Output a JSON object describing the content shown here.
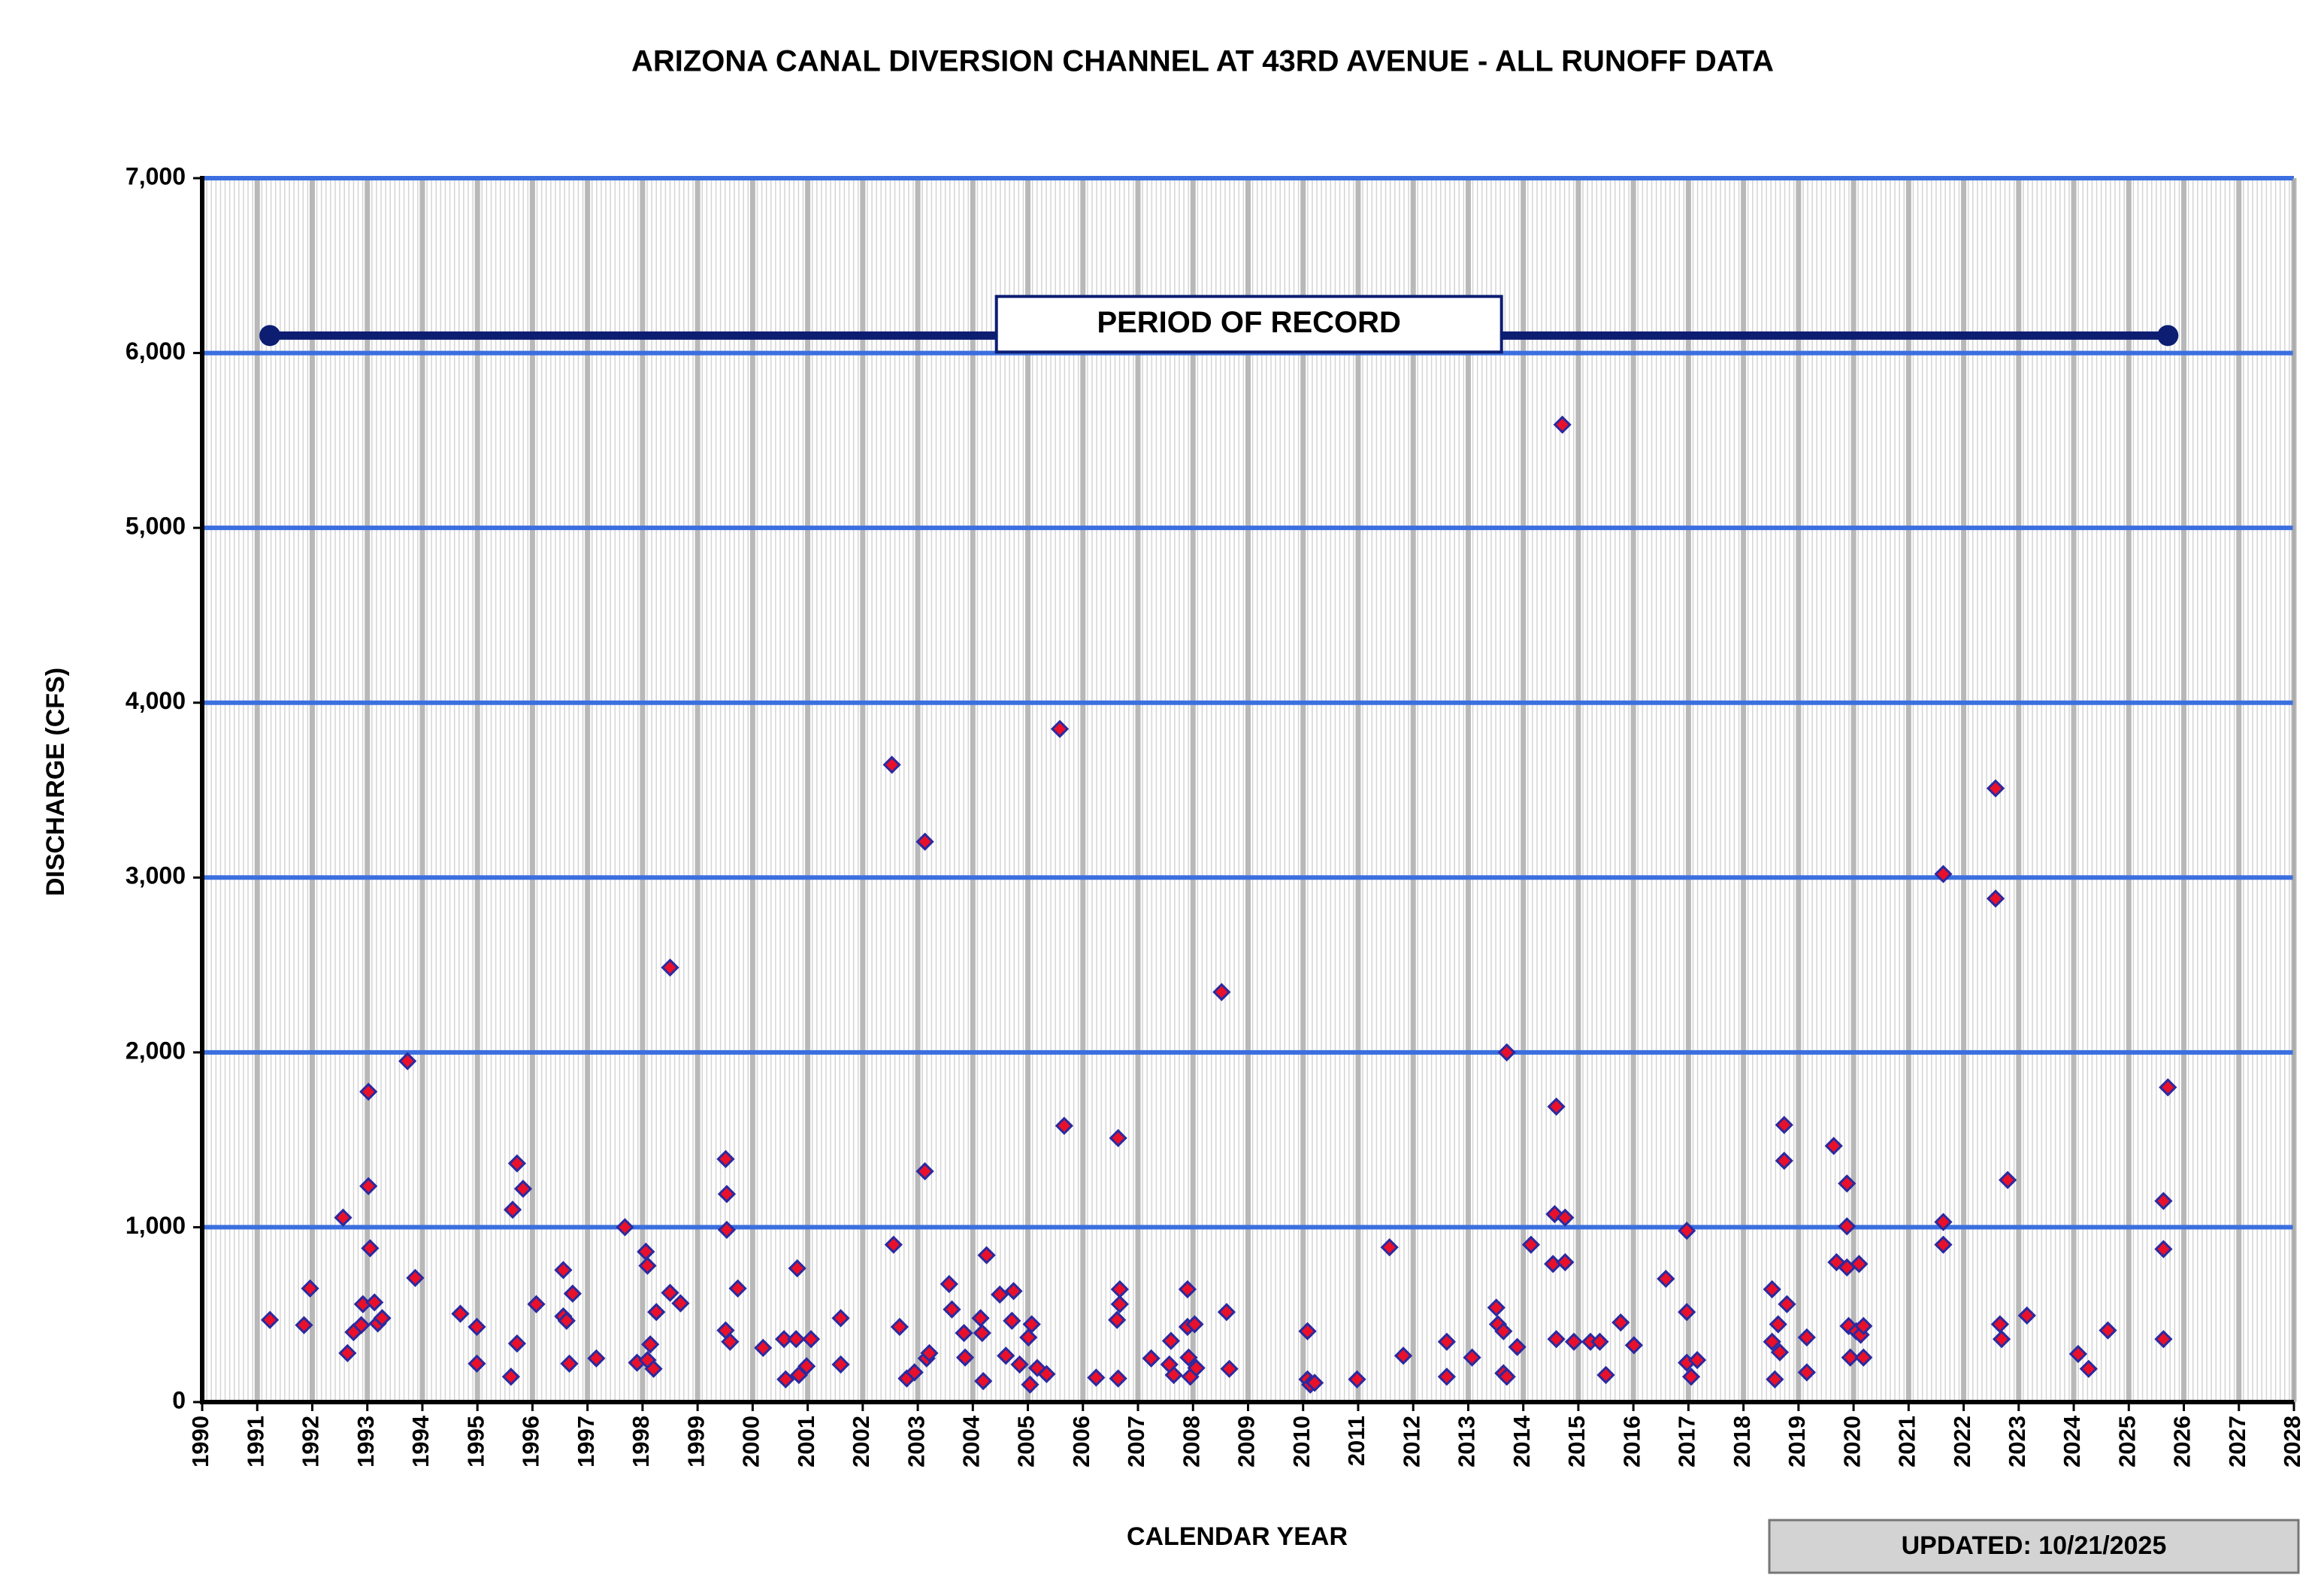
{
  "chart_data": {
    "type": "scatter",
    "title": "ARIZONA CANAL DIVERSION CHANNEL AT 43RD AVENUE - ALL RUNOFF DATA",
    "x_label": "CALENDAR YEAR",
    "y_label": "DISCHARGE (CFS)",
    "updated": "UPDATED: 10/21/2025",
    "color": "#e8102a",
    "edge_color": "#2a2aa0",
    "grid": true,
    "xlim": [
      1990,
      2028
    ],
    "ylim": [
      0,
      7000
    ],
    "xticks": [
      1990,
      1991,
      1992,
      1993,
      1994,
      1995,
      1996,
      1997,
      1998,
      1999,
      2000,
      2001,
      2002,
      2003,
      2004,
      2005,
      2006,
      2007,
      2008,
      2009,
      2010,
      2011,
      2012,
      2013,
      2014,
      2015,
      2016,
      2017,
      2018,
      2019,
      2020,
      2021,
      2022,
      2023,
      2024,
      2025,
      2026,
      2027,
      2028
    ],
    "yticks": [
      0,
      {
        "value": 1000,
        "label": "1,000"
      },
      {
        "value": 2000,
        "label": "2,000"
      },
      {
        "value": 3000,
        "label": "3,000"
      },
      {
        "value": 4000,
        "label": "4,000"
      },
      {
        "value": 5000,
        "label": "5,000"
      },
      {
        "value": 6000,
        "label": "6,000"
      },
      {
        "value": 7000,
        "label": "7,000"
      }
    ],
    "period_of_record": {
      "text": "PERIOD OF RECORD",
      "x": [
        1991.23,
        2025.71
      ],
      "y": 6100
    },
    "x": [
      1991.23,
      1991.85,
      1991.96,
      1992.56,
      1992.64,
      1992.75,
      1992.89,
      1992.92,
      1993.02,
      1993.02,
      1993.05,
      1993.13,
      1993.19,
      1993.27,
      1993.73,
      1993.87,
      1994.69,
      1994.99,
      1994.99,
      1995.61,
      1995.64,
      1995.72,
      1995.72,
      1995.83,
      1996.07,
      1996.56,
      1996.56,
      1996.62,
      1996.67,
      1996.73,
      1997.16,
      1997.68,
      1997.9,
      1998.06,
      1998.09,
      1998.09,
      1998.14,
      1998.2,
      1998.25,
      1998.5,
      1998.5,
      1998.69,
      1999.51,
      1999.51,
      1999.53,
      1999.53,
      1999.59,
      1999.73,
      2000.19,
      2000.57,
      2000.6,
      2000.79,
      2000.81,
      2000.84,
      2000.98,
      2001.06,
      2001.6,
      2001.6,
      2002.53,
      2002.56,
      2002.67,
      2002.8,
      2002.94,
      2003.13,
      2003.13,
      2003.16,
      2003.21,
      2003.57,
      2003.62,
      2003.84,
      2003.86,
      2004.14,
      2004.17,
      2004.19,
      2004.25,
      2004.49,
      2004.6,
      2004.74,
      2004.71,
      2004.85,
      2005.01,
      2005.07,
      2005.04,
      2005.17,
      2005.34,
      2005.58,
      2005.66,
      2006.24,
      2006.62,
      2006.64,
      2006.67,
      2006.67,
      2006.64,
      2007.24,
      2007.57,
      2007.6,
      2007.65,
      2007.9,
      2007.9,
      2007.92,
      2007.95,
      2008.03,
      2008.06,
      2008.52,
      2008.61,
      2008.66,
      2010.08,
      2010.08,
      2010.13,
      2010.21,
      2010.98,
      2011.57,
      2011.82,
      2012.61,
      2012.61,
      2013.07,
      2013.51,
      2013.54,
      2013.64,
      2013.64,
      2013.7,
      2013.7,
      2013.89,
      2014.14,
      2014.6,
      2014.57,
      2014.54,
      2014.6,
      2014.71,
      2014.76,
      2014.76,
      2014.92,
      2015.22,
      2015.39,
      2015.5,
      2015.77,
      2016.01,
      2016.59,
      2016.97,
      2016.97,
      2016.97,
      2017.05,
      2017.16,
      2018.52,
      2018.52,
      2018.57,
      2018.63,
      2018.66,
      2018.74,
      2018.74,
      2018.79,
      2019.15,
      2019.15,
      2019.64,
      2019.69,
      2019.88,
      2019.88,
      2019.88,
      2019.91,
      2019.94,
      2020.05,
      2020.1,
      2020.13,
      2020.18,
      2020.18,
      2021.63,
      2021.63,
      2021.63,
      2022.58,
      2022.58,
      2022.66,
      2022.69,
      2022.8,
      2023.15,
      2024.08,
      2024.27,
      2024.62,
      2025.63,
      2025.63,
      2025.63,
      2025.71
    ],
    "values": [
      470,
      440,
      650,
      1055,
      280,
      400,
      440,
      560,
      1775,
      1235,
      880,
      570,
      450,
      480,
      1950,
      710,
      505,
      430,
      220,
      145,
      1100,
      1365,
      335,
      1220,
      560,
      755,
      490,
      465,
      220,
      620,
      250,
      1000,
      225,
      860,
      780,
      240,
      330,
      190,
      515,
      2485,
      625,
      565,
      1390,
      410,
      1190,
      985,
      345,
      650,
      310,
      360,
      130,
      360,
      765,
      155,
      205,
      360,
      480,
      215,
      3645,
      900,
      430,
      135,
      170,
      3205,
      1320,
      250,
      280,
      675,
      530,
      395,
      255,
      480,
      395,
      120,
      840,
      615,
      265,
      635,
      465,
      215,
      370,
      445,
      100,
      195,
      160,
      3850,
      1580,
      140,
      470,
      1510,
      645,
      560,
      135,
      250,
      215,
      350,
      155,
      645,
      430,
      255,
      145,
      445,
      195,
      2345,
      515,
      190,
      405,
      130,
      100,
      110,
      130,
      885,
      265,
      345,
      145,
      255,
      540,
      445,
      405,
      165,
      145,
      2000,
      315,
      900,
      1690,
      1075,
      790,
      360,
      5590,
      1055,
      800,
      345,
      345,
      345,
      155,
      455,
      325,
      705,
      980,
      515,
      225,
      145,
      240,
      645,
      345,
      130,
      445,
      285,
      1585,
      1380,
      560,
      370,
      170,
      1465,
      800,
      1250,
      1005,
      770,
      435,
      255,
      405,
      790,
      385,
      435,
      255,
      3020,
      1030,
      900,
      3510,
      2880,
      445,
      360,
      1270,
      495,
      275,
      190,
      410,
      1150,
      875,
      360,
      1800
    ]
  }
}
